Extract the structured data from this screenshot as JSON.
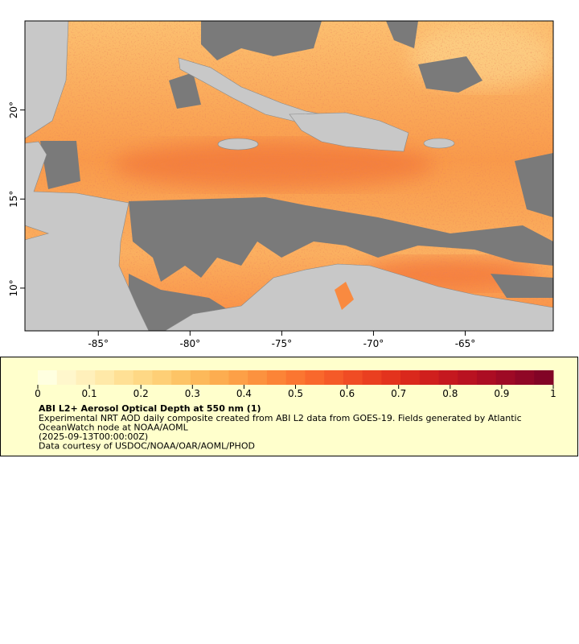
{
  "map": {
    "xlim": [
      -89,
      -60.2
    ],
    "ylim": [
      7.6,
      25
    ],
    "xticks": [
      {
        "value": -85,
        "label": "-85°"
      },
      {
        "value": -80,
        "label": "-80°"
      },
      {
        "value": -75,
        "label": "-75°"
      },
      {
        "value": -70,
        "label": "-70°"
      },
      {
        "value": -65,
        "label": "-65°"
      }
    ],
    "yticks": [
      {
        "value": 10,
        "label": "10°"
      },
      {
        "value": 15,
        "label": "15°"
      },
      {
        "value": 20,
        "label": "20°"
      }
    ]
  },
  "colorbar": {
    "lim": [
      0,
      1
    ],
    "ticks": [
      0,
      0.1,
      0.2,
      0.3,
      0.4,
      0.5,
      0.6,
      0.7,
      0.8,
      0.9,
      1
    ],
    "colors": [
      "#ffffe0",
      "#fff7cc",
      "#fff0bb",
      "#ffe9a8",
      "#ffe095",
      "#fed885",
      "#fecf76",
      "#fdc466",
      "#fdb95a",
      "#fdad50",
      "#fda047",
      "#fc923f",
      "#fc8437",
      "#fb7631",
      "#f9682c",
      "#f55a28",
      "#f04c24",
      "#ea3f20",
      "#e3331d",
      "#da281c",
      "#d01f1d",
      "#c5181f",
      "#b91221",
      "#ac0d23",
      "#9e0a25",
      "#900726",
      "#820426"
    ],
    "title": "ABI L2+ Aerosol Optical Depth at 550 nm (1)",
    "lines": [
      "Experimental NRT AOD daily composite created from ABI L2 data from GOES-19. Fields generated by Atlantic",
      "OceanWatch node at NOAA/AOML",
      "(2025-09-13T00:00:00Z)",
      "Data courtesy of USDOC/NOAA/OAR/AOML/PHOD"
    ]
  }
}
